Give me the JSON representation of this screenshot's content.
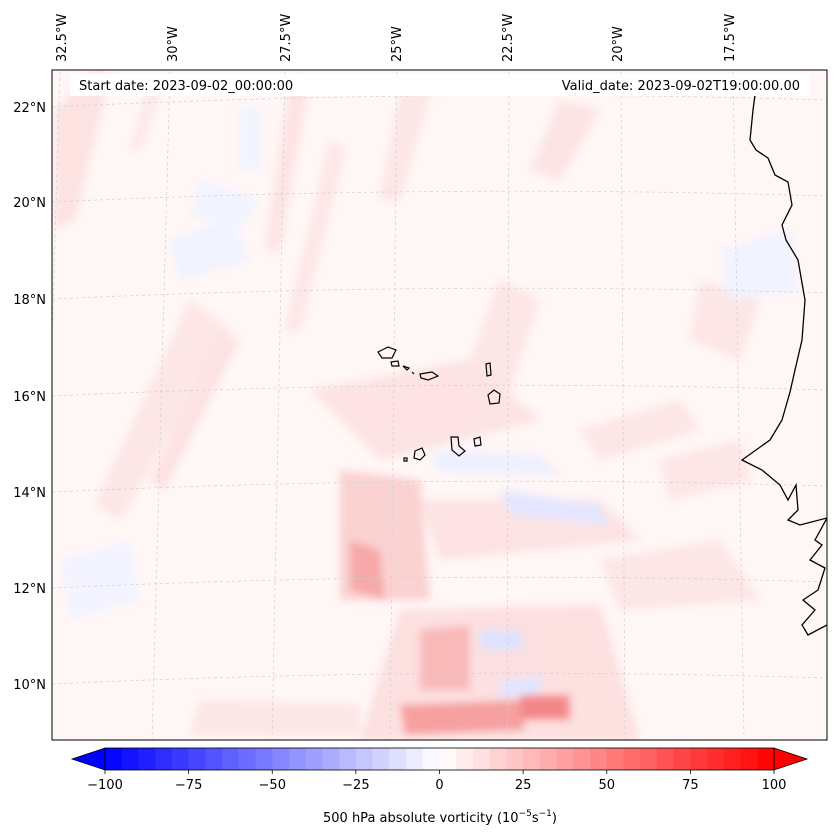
{
  "map": {
    "start_date": "Start date: 2023-09-02_00:00:00",
    "valid_date": "Valid_date: 2023-09-02T19:00:00.00",
    "lon_labels": [
      "32.5°W",
      "30°W",
      "27.5°W",
      "25°W",
      "22.5°W",
      "20°W",
      "17.5°W"
    ],
    "lat_labels": [
      "22°N",
      "20°N",
      "18°N",
      "16°N",
      "14°N",
      "12°N",
      "10°N"
    ],
    "colors": {
      "positive_max": "#ff0000",
      "negative_max": "#0000ff",
      "background_field": "#fff4f4",
      "coastline": "#000000"
    }
  },
  "colorbar": {
    "label_main": "500 hPa absolute vorticity (10",
    "label_exp1": "−5",
    "label_mid": "s",
    "label_exp2": "−1",
    "label_end": ")",
    "min": -100,
    "max": 100,
    "ticks": [
      "−100",
      "−75",
      "−50",
      "−25",
      "0",
      "25",
      "50",
      "75",
      "100"
    ],
    "levels": [
      -100,
      -95,
      -90,
      -85,
      -80,
      -75,
      -70,
      -65,
      -60,
      -55,
      -50,
      -45,
      -40,
      -35,
      -30,
      -25,
      -20,
      -15,
      -10,
      -5,
      0,
      5,
      10,
      15,
      20,
      25,
      30,
      35,
      40,
      45,
      50,
      55,
      60,
      65,
      70,
      75,
      80,
      85,
      90,
      95,
      100
    ]
  }
}
